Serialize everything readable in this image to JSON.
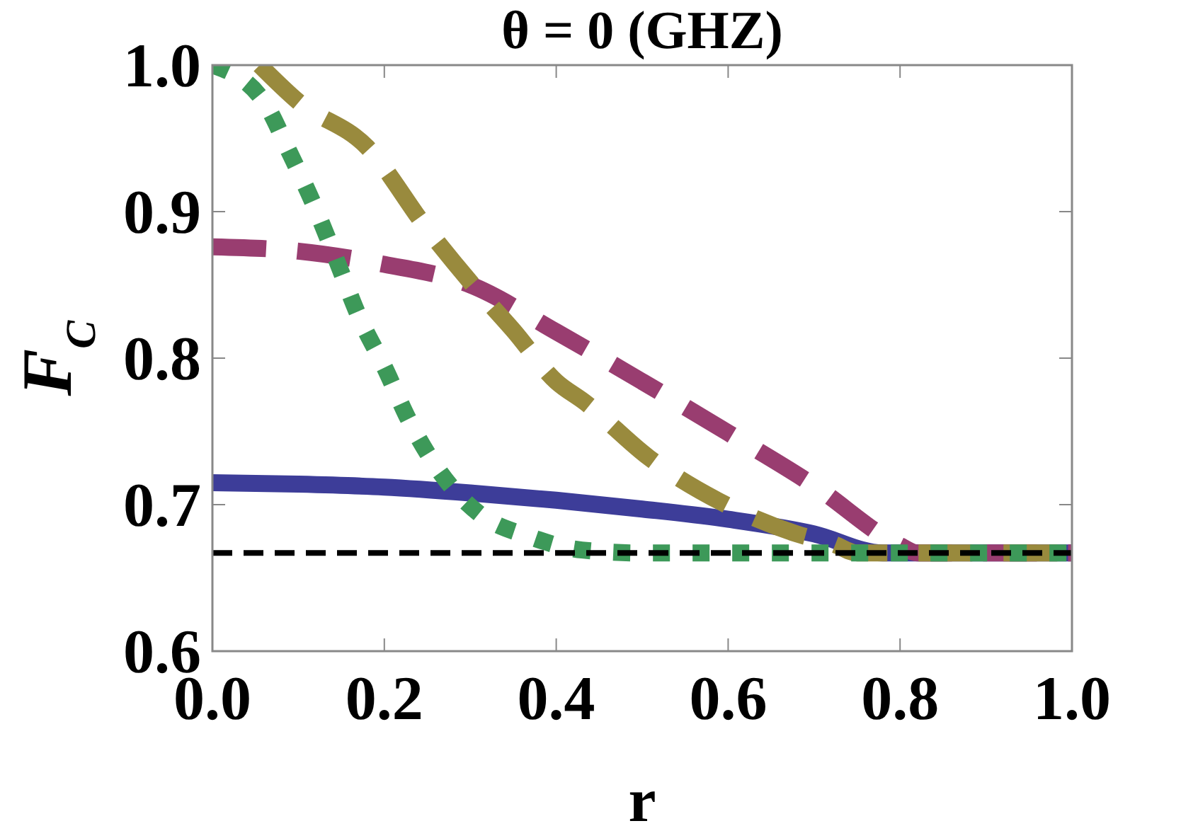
{
  "chart_data": {
    "type": "line",
    "title": "θ = 0 (GHZ)",
    "xlabel": "r",
    "ylabel": "F$_{C}$",
    "xlim": [
      0,
      1
    ],
    "ylim": [
      0.6,
      1
    ],
    "xticks": [
      {
        "value": 0,
        "label": "0.0"
      },
      0.2,
      0.4,
      0.6,
      0.8,
      {
        "value": 1,
        "label": "1.0"
      }
    ],
    "yticks": [
      0.6,
      0.7,
      0.8,
      0.9,
      {
        "value": 1,
        "label": "1.0"
      }
    ],
    "grid": false,
    "series": [
      {
        "color": "#3d3d99",
        "line_style": "solid",
        "x": [
          0,
          0.1,
          0.2,
          0.3,
          0.4,
          0.5,
          0.6,
          0.7,
          0.78,
          1
        ],
        "values": [
          0.715,
          0.714,
          0.712,
          0.708,
          0.703,
          0.697,
          0.69,
          0.68,
          0.667,
          0.667
        ]
      },
      {
        "color": "#993d70",
        "line_style": "dashed",
        "x": [
          0,
          0.1,
          0.2,
          0.3,
          0.4,
          0.5,
          0.6,
          0.7,
          0.8,
          0.82,
          1
        ],
        "values": [
          0.876,
          0.873,
          0.864,
          0.85,
          0.818,
          0.784,
          0.749,
          0.713,
          0.672,
          0.667,
          0.667
        ]
      },
      {
        "color": "#998a3d",
        "line_style": "dashed",
        "x": [
          0.055,
          0.1,
          0.18,
          0.25,
          0.3,
          0.35,
          0.4,
          0.433,
          0.508,
          0.594,
          0.68,
          0.723,
          0.75,
          1
        ],
        "values": [
          1,
          0.975,
          0.944,
          0.888,
          0.852,
          0.819,
          0.784,
          0.77,
          0.732,
          0.701,
          0.68,
          0.673,
          0.667,
          0.667
        ]
      },
      {
        "color": "#3d9959",
        "line_style": "dotted",
        "x": [
          0,
          0.06,
          0.09,
          0.12,
          0.145,
          0.17,
          0.2,
          0.23,
          0.265,
          0.31,
          0.37,
          0.43,
          0.5,
          1
        ],
        "values": [
          1,
          0.975,
          0.94,
          0.902,
          0.866,
          0.829,
          0.794,
          0.756,
          0.722,
          0.694,
          0.678,
          0.669,
          0.667,
          0.667
        ]
      }
    ],
    "ref_lines": [
      {
        "axis": "y",
        "value": 0.667,
        "color": "#000000",
        "line_style": "dashed"
      }
    ]
  }
}
